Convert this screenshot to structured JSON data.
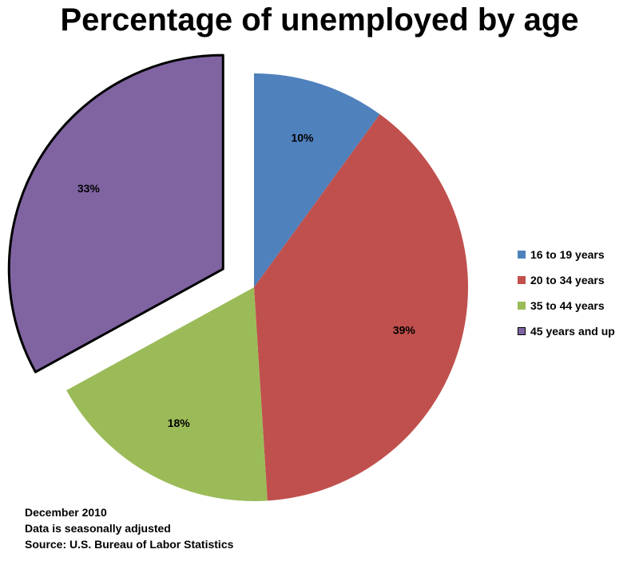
{
  "chart_data": {
    "type": "pie",
    "title": "Percentage of unemployed by age",
    "categories": [
      "16 to 19 years",
      "20 to 34 years",
      "35 to 44 years",
      "45 years and up"
    ],
    "values": [
      10,
      39,
      18,
      33
    ],
    "labels": [
      "10%",
      "39%",
      "18%",
      "33%"
    ],
    "colors": [
      "#4F81BD",
      "#C0504D",
      "#9BBB59",
      "#8064A2"
    ],
    "exploded": [
      false,
      false,
      false,
      true
    ],
    "legend_position": "right",
    "notes": [
      "December 2010",
      "Data is seasonally adjusted",
      "Source: U.S. Bureau of Labor Statistics"
    ]
  }
}
